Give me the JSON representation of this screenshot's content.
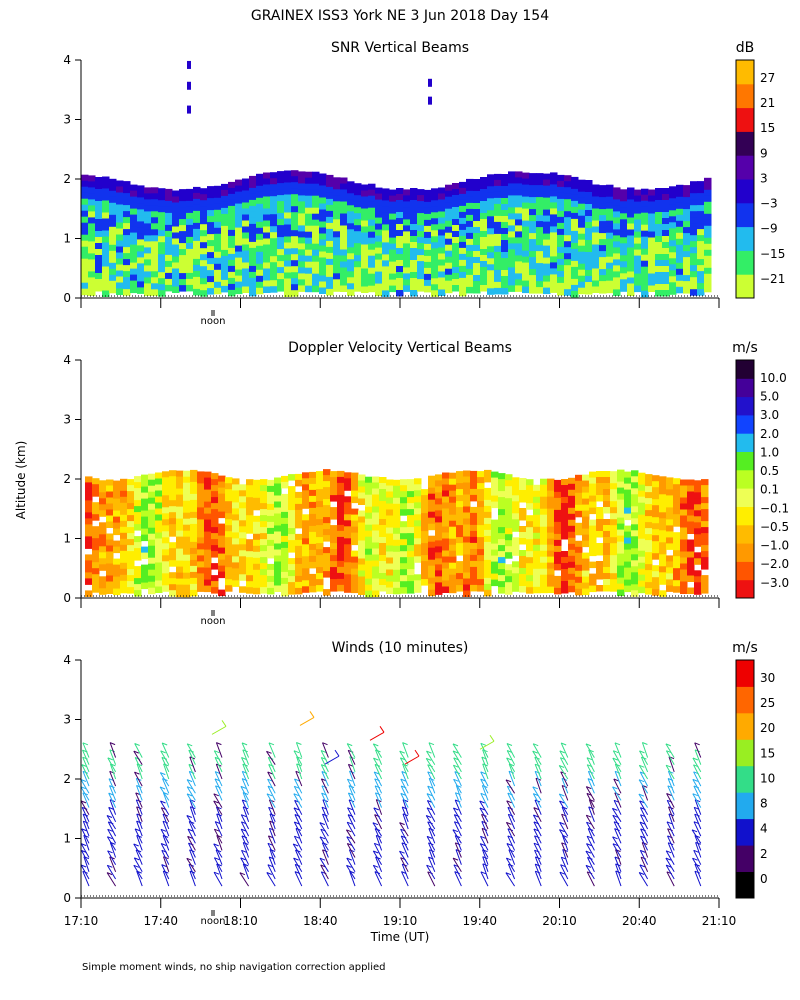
{
  "page": {
    "title": "GRAINEX ISS3 York NE   3 Jun 2018 Day 154",
    "ylabel": "Altitude (km)",
    "xlabel": "Time (UT)",
    "footnote": "Simple moment winds, no ship navigation correction applied",
    "noon_label": "noon"
  },
  "x_ticks": [
    "17:10",
    "17:40",
    "18:10",
    "18:40",
    "19:10",
    "19:40",
    "20:10",
    "20:40",
    "21:10"
  ],
  "y_ticks": [
    "0",
    "1",
    "2",
    "3",
    "4"
  ],
  "colors": {
    "snr": [
      "#ccff33",
      "#33ee66",
      "#22bbee",
      "#1133ee",
      "#2200cc",
      "#5500aa",
      "#330055",
      "#ee1111",
      "#ff7700",
      "#ffbb00"
    ],
    "vel": [
      "#ee1111",
      "#ff5500",
      "#ff9900",
      "#ffbb00",
      "#ffee00",
      "#eeff55",
      "#bbff22",
      "#55ee22",
      "#22bbee",
      "#1144ff",
      "#2211cc",
      "#440099",
      "#220033"
    ],
    "wind": [
      "#000000",
      "#440066",
      "#1111cc",
      "#22aaee",
      "#33dd88",
      "#99ee22",
      "#ffaa00",
      "#ff6600",
      "#ee0000"
    ]
  },
  "chart_data": [
    {
      "type": "heatmap",
      "title": "SNR Vertical Beams",
      "unit": "dB",
      "x_range": [
        "17:10",
        "21:10"
      ],
      "ylim": [
        0,
        4
      ],
      "colorbar_ticks": [
        "27",
        "21",
        "15",
        "9",
        "3",
        "−3",
        "−9",
        "−15",
        "−21"
      ],
      "description_values": {
        "data_top_km": 2.0,
        "max_snr_band_km": [
          1.8,
          2.0
        ]
      }
    },
    {
      "type": "heatmap",
      "title": "Doppler Velocity Vertical Beams",
      "unit": "m/s",
      "x_range": [
        "17:10",
        "21:10"
      ],
      "ylim": [
        0,
        4
      ],
      "colorbar_ticks": [
        "10.0",
        "5.0",
        "3.0",
        "2.0",
        "1.0",
        "0.5",
        "0.1",
        "−0.1",
        "−0.5",
        "−1.0",
        "−2.0",
        "−3.0"
      ],
      "description_values": {
        "data_top_km": 2.1
      }
    },
    {
      "type": "scatter",
      "title": "Winds (10 minutes)",
      "unit": "m/s",
      "x_range": [
        "17:10",
        "21:10"
      ],
      "ylim": [
        0,
        4
      ],
      "colorbar_ticks": [
        "30",
        "25",
        "20",
        "15",
        "10",
        "8",
        "4",
        "2",
        "0"
      ],
      "profile_interval_min": 10,
      "profile_count": 24
    }
  ]
}
